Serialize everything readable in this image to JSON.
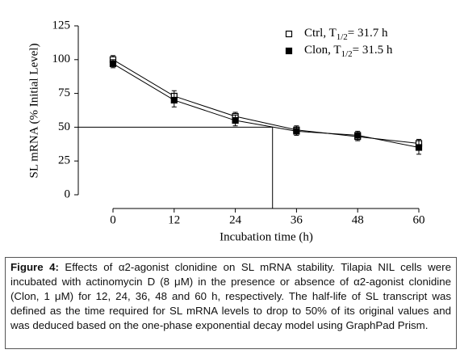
{
  "chart_data": {
    "type": "line",
    "x_label": "Incubation time (h)",
    "y_label": "SL mRNA (% Initial Level)",
    "x": [
      0,
      12,
      24,
      36,
      48,
      60
    ],
    "series": [
      {
        "name": "Ctrl, T1/2= 31.7 h",
        "color": "#000000",
        "marker": "open-square",
        "values": [
          100,
          73,
          58,
          48,
          43,
          38
        ],
        "errors": [
          3,
          4,
          3,
          3,
          3,
          3
        ]
      },
      {
        "name": "Clon, T1/2= 31.5 h",
        "color": "#000000",
        "marker": "filled-square",
        "values": [
          97,
          70,
          55,
          47,
          44,
          35
        ],
        "errors": [
          3,
          5,
          4,
          3,
          3,
          5
        ]
      }
    ],
    "half_life_line": {
      "x": 31.3,
      "y": 50
    },
    "xlim": [
      0,
      60
    ],
    "xticks": [
      0,
      12,
      24,
      36,
      48,
      60
    ],
    "ylim": [
      0,
      125
    ],
    "yticks": [
      0,
      25,
      50,
      75,
      100,
      125
    ],
    "legend": "top-right"
  },
  "caption": {
    "label": "Figure 4:",
    "text": "Effects of α2-agonist clonidine on SL mRNA stability. Tilapia NIL cells were incubated with actinomycin D (8 μM) in the presence or absence of α2-agonist clonidine (Clon, 1 μM) for 12, 24, 36, 48 and 60 h, respectively. The half-life of SL transcript was defined as the time required for SL mRNA levels to drop to 50% of its original values and was deduced based on the one-phase exponential decay model using GraphPad Prism."
  }
}
